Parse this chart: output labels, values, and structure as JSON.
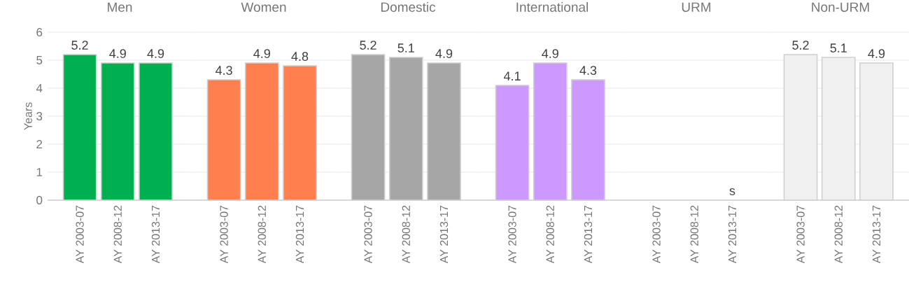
{
  "chart_data": [
    {
      "type": "bar",
      "title": "Men",
      "ylabel": "Years",
      "categories": [
        "AY 2003-07",
        "AY 2008-12",
        "AY 2013-17"
      ],
      "values": [
        5.2,
        4.9,
        4.9
      ],
      "color": "#00b050",
      "ylim": [
        0,
        6
      ],
      "yticks": [
        0,
        1,
        2,
        3,
        4,
        5,
        6
      ],
      "grid": "y",
      "data_labels": true
    },
    {
      "type": "bar",
      "title": "Women",
      "categories": [
        "AY 2003-07",
        "AY 2008-12",
        "AY 2013-17"
      ],
      "values": [
        4.3,
        4.9,
        4.8
      ],
      "color": "#ff7f4f",
      "ylim": [
        0,
        6
      ],
      "yticks": [
        0,
        1,
        2,
        3,
        4,
        5,
        6
      ],
      "grid": "y",
      "data_labels": true,
      "tick_labels": "x"
    },
    {
      "type": "bar",
      "title": "Domestic",
      "categories": [
        "AY 2003-07",
        "AY 2008-12",
        "AY 2013-17"
      ],
      "values": [
        5.2,
        5.1,
        4.9
      ],
      "color": "#a6a6a6",
      "ylim": [
        0,
        6
      ],
      "yticks": [
        0,
        1,
        2,
        3,
        4,
        5,
        6
      ],
      "grid": "y",
      "data_labels": true,
      "tick_labels": "x"
    },
    {
      "type": "bar",
      "title": "International",
      "categories": [
        "AY 2003-07",
        "AY 2008-12",
        "AY 2013-17"
      ],
      "values": [
        4.1,
        4.9,
        4.3
      ],
      "color": "#cc99ff",
      "ylim": [
        0,
        6
      ],
      "yticks": [
        0,
        1,
        2,
        3,
        4,
        5,
        6
      ],
      "grid": "y",
      "data_labels": true,
      "tick_labels": "x"
    },
    {
      "type": "bar",
      "title": "URM",
      "categories": [
        "AY 2003-07",
        "AY 2008-12",
        "AY 2013-17"
      ],
      "values": [
        null,
        null,
        null
      ],
      "value_labels": [
        null,
        null,
        "s"
      ],
      "ylim": [
        0,
        6
      ],
      "yticks": [
        0,
        1,
        2,
        3,
        4,
        5,
        6
      ],
      "grid": "y",
      "tick_labels": "x"
    },
    {
      "type": "bar",
      "title": "Non-URM",
      "categories": [
        "AY 2003-07",
        "AY 2008-12",
        "AY 2013-17"
      ],
      "values": [
        5.2,
        5.1,
        4.9
      ],
      "color": "#f0f0f0",
      "ylim": [
        0,
        6
      ],
      "yticks": [
        0,
        1,
        2,
        3,
        4,
        5,
        6
      ],
      "grid": "y",
      "data_labels": true,
      "tick_labels": "x"
    }
  ]
}
